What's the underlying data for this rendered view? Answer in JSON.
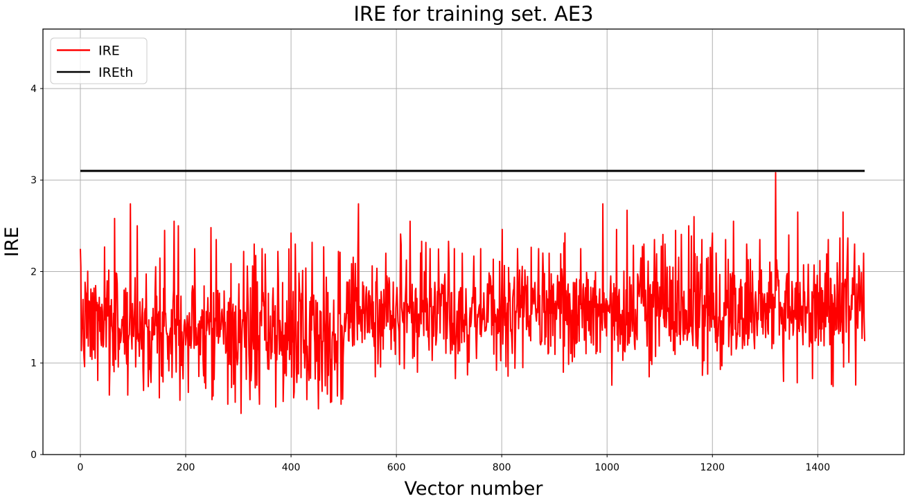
{
  "chart_data": {
    "type": "line",
    "title": "IRE for training set. AE3",
    "xlabel": "Vector number",
    "ylabel": "IRE",
    "xlim": [
      -71,
      1564
    ],
    "ylim": [
      0,
      4.65
    ],
    "xticks": [
      0,
      200,
      400,
      600,
      800,
      1000,
      1200,
      1400
    ],
    "yticks": [
      0,
      1,
      2,
      3,
      4
    ],
    "grid": true,
    "colors": {
      "background": "#ffffff",
      "grid": "#b0b0b0",
      "spine": "#000000",
      "ire_line": "#ff0000",
      "threshold_line": "#000000"
    },
    "legend": {
      "position": "upper-left",
      "entries": [
        {
          "label": "IRE",
          "color": "#ff0000"
        },
        {
          "label": "IREth",
          "color": "#000000"
        }
      ]
    },
    "threshold_series": {
      "name": "IREth",
      "value": 3.1,
      "x_start": 0,
      "x_end": 1489,
      "color": "#000000",
      "line_width": 3
    },
    "ire_series": {
      "name": "IRE",
      "color": "#ff0000",
      "line_width": 2,
      "n_points": 1490,
      "seed": 7,
      "segments": [
        {
          "x0": 0,
          "x1": 280,
          "mean": 1.42,
          "std": 0.3,
          "min": 0.57,
          "max": 2.28
        },
        {
          "x0": 280,
          "x1": 500,
          "mean": 1.33,
          "std": 0.36,
          "min": 0.45,
          "max": 2.25
        },
        {
          "x0": 500,
          "x1": 1000,
          "mean": 1.55,
          "std": 0.27,
          "min": 0.78,
          "max": 2.32
        },
        {
          "x0": 1000,
          "x1": 1490,
          "mean": 1.62,
          "std": 0.3,
          "min": 0.74,
          "max": 2.42
        }
      ],
      "spikes": [
        [
          1,
          2.05
        ],
        [
          65,
          2.58
        ],
        [
          95,
          2.74
        ],
        [
          108,
          2.5
        ],
        [
          160,
          2.45
        ],
        [
          178,
          2.55
        ],
        [
          186,
          2.5
        ],
        [
          205,
          2.3
        ],
        [
          248,
          2.48
        ],
        [
          258,
          2.35
        ],
        [
          310,
          2.22
        ],
        [
          330,
          2.3
        ],
        [
          345,
          2.25
        ],
        [
          375,
          2.22
        ],
        [
          400,
          2.42
        ],
        [
          408,
          2.3
        ],
        [
          440,
          2.32
        ],
        [
          462,
          2.27
        ],
        [
          490,
          2.22
        ],
        [
          528,
          2.74
        ],
        [
          580,
          2.2
        ],
        [
          608,
          2.41
        ],
        [
          626,
          2.55
        ],
        [
          648,
          2.33
        ],
        [
          664,
          2.25
        ],
        [
          699,
          2.33
        ],
        [
          710,
          2.25
        ],
        [
          725,
          2.2
        ],
        [
          760,
          2.25
        ],
        [
          801,
          2.46
        ],
        [
          830,
          2.25
        ],
        [
          870,
          2.25
        ],
        [
          890,
          2.2
        ],
        [
          920,
          2.42
        ],
        [
          950,
          2.25
        ],
        [
          992,
          2.74
        ],
        [
          1018,
          2.46
        ],
        [
          1038,
          2.67
        ],
        [
          1070,
          2.3
        ],
        [
          1090,
          2.35
        ],
        [
          1110,
          2.3
        ],
        [
          1130,
          2.45
        ],
        [
          1155,
          2.5
        ],
        [
          1165,
          2.6
        ],
        [
          1180,
          2.35
        ],
        [
          1200,
          2.42
        ],
        [
          1225,
          2.35
        ],
        [
          1240,
          2.55
        ],
        [
          1265,
          2.3
        ],
        [
          1290,
          2.35
        ],
        [
          1320,
          3.08
        ],
        [
          1345,
          2.4
        ],
        [
          1362,
          2.65
        ],
        [
          1390,
          2.3
        ],
        [
          1420,
          2.35
        ],
        [
          1448,
          2.65
        ],
        [
          1470,
          2.3
        ],
        [
          1487,
          2.2
        ]
      ],
      "dips": [
        [
          55,
          0.65
        ],
        [
          90,
          0.65
        ],
        [
          120,
          0.7
        ],
        [
          150,
          0.62
        ],
        [
          205,
          0.68
        ],
        [
          250,
          0.6
        ],
        [
          280,
          0.55
        ],
        [
          305,
          0.45
        ],
        [
          322,
          0.6
        ],
        [
          340,
          0.55
        ],
        [
          371,
          0.52
        ],
        [
          385,
          0.58
        ],
        [
          405,
          0.62
        ],
        [
          430,
          0.6
        ],
        [
          452,
          0.5
        ],
        [
          475,
          0.57
        ],
        [
          495,
          0.55
        ],
        [
          560,
          0.85
        ],
        [
          640,
          0.9
        ],
        [
          735,
          0.87
        ],
        [
          790,
          0.92
        ],
        [
          840,
          0.95
        ],
        [
          917,
          0.9
        ],
        [
          1080,
          0.85
        ],
        [
          1215,
          0.93
        ],
        [
          1335,
          0.8
        ],
        [
          1390,
          0.83
        ],
        [
          1472,
          0.76
        ]
      ]
    }
  }
}
